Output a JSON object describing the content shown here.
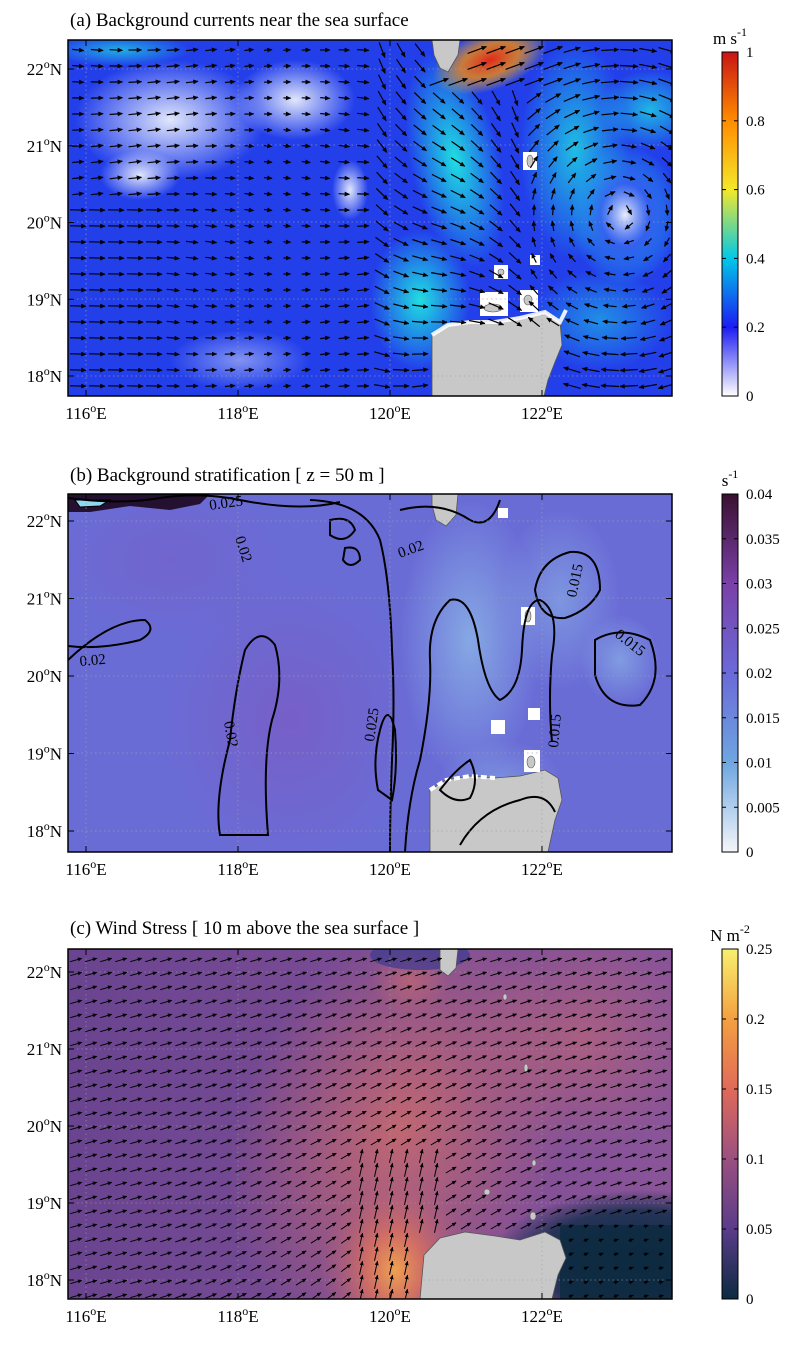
{
  "panels": [
    {
      "id": "a",
      "title": "(a) Background currents near the sea surface",
      "colorbar": {
        "unit_base": "m s",
        "unit_exp": "-1",
        "ticks": [
          "0",
          "0.2",
          "0.4",
          "0.6",
          "0.8",
          "1"
        ],
        "range": [
          0,
          1
        ],
        "colors": [
          "#ffffff",
          "#1c1cf2",
          "#00c8e8",
          "#f4e82a",
          "#ff8c00",
          "#c81414"
        ]
      }
    },
    {
      "id": "b",
      "title": "(b) Background stratification [ z = 50 m ]",
      "colorbar": {
        "unit_base": "s",
        "unit_exp": "-1",
        "ticks": [
          "0",
          "0.005",
          "0.01",
          "0.015",
          "0.02",
          "0.025",
          "0.03",
          "0.035",
          "0.04"
        ],
        "range": [
          0,
          0.04
        ],
        "colors": [
          "#f4f6fa",
          "#6ea6e0",
          "#6a6ad8",
          "#7a40a8",
          "#3a1030"
        ]
      },
      "contour_labels": [
        "0.025",
        "0.02",
        "0.02",
        "0.015",
        "0.02",
        "0.015",
        "0.02",
        "0.025",
        "0.015"
      ]
    },
    {
      "id": "c",
      "title": "(c) Wind Stress [ 10 m above the sea surface ]",
      "colorbar": {
        "unit_base": "N m",
        "unit_exp": "-2",
        "ticks": [
          "0",
          "0.05",
          "0.1",
          "0.15",
          "0.2",
          "0.25"
        ],
        "range": [
          0,
          0.25
        ],
        "colors": [
          "#0c2a40",
          "#5a3c8a",
          "#9a5080",
          "#e06a5a",
          "#f4a040",
          "#f8f070"
        ]
      }
    }
  ],
  "axes": {
    "xticks": [
      "116",
      "118",
      "120",
      "122"
    ],
    "xsuffix": "E",
    "yticks": [
      "18",
      "19",
      "20",
      "21",
      "22"
    ],
    "ysuffix": "N"
  }
}
